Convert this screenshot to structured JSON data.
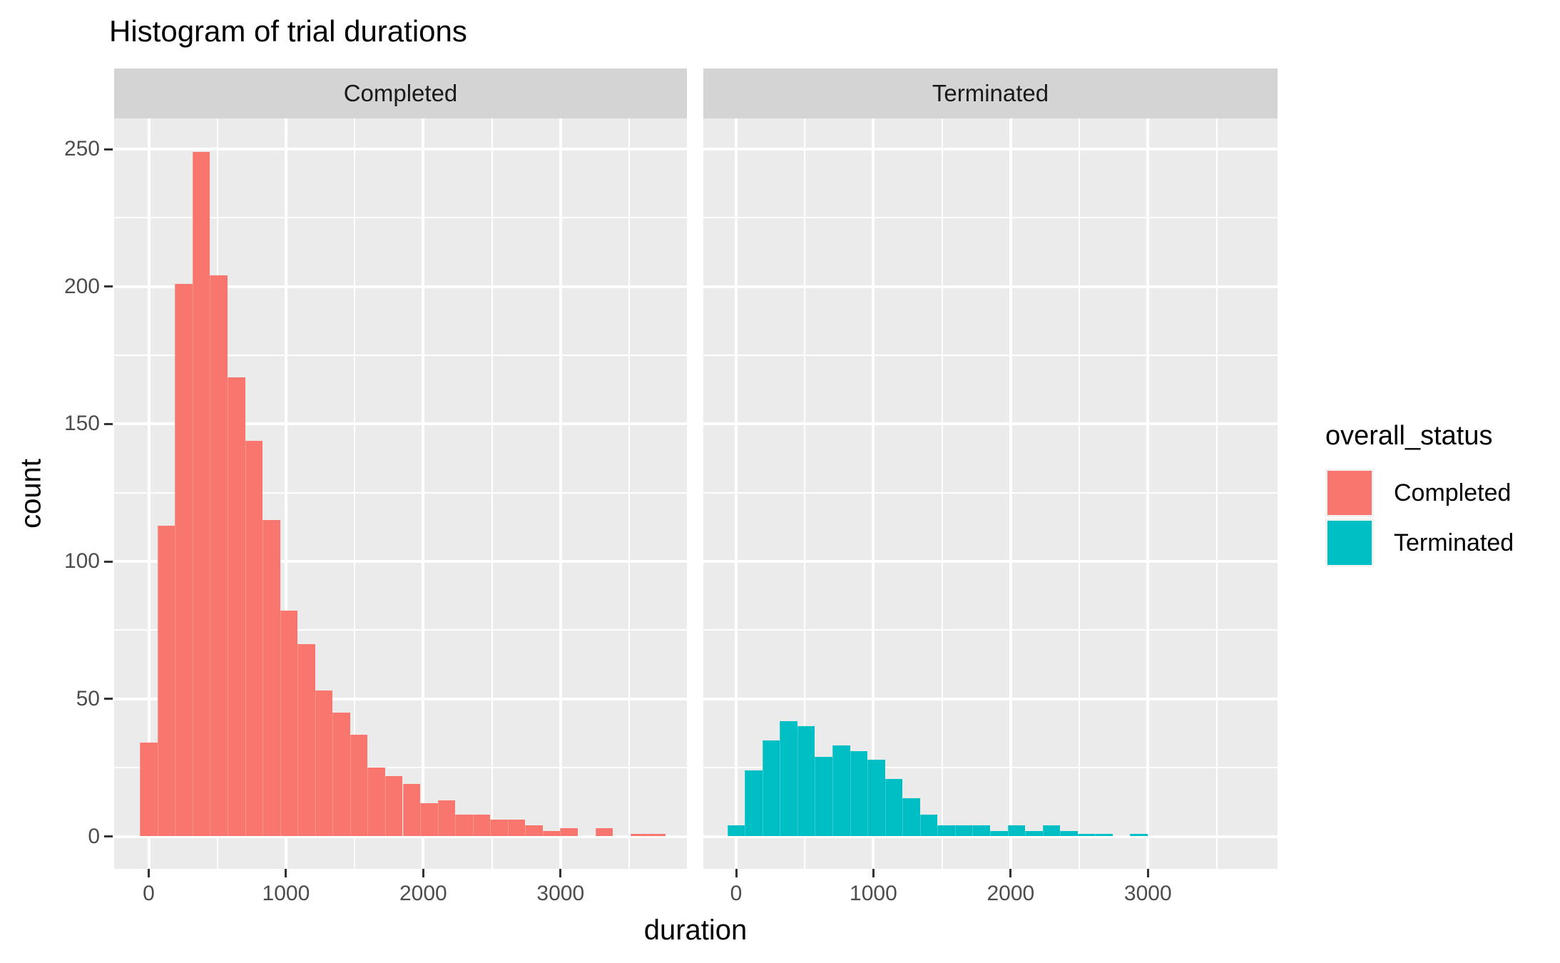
{
  "title": "Histogram of trial durations",
  "axes": {
    "x_label": "duration",
    "y_label": "count",
    "x_tick_labels": [
      "0",
      "1000",
      "2000",
      "3000"
    ],
    "y_tick_labels": [
      "0",
      "50",
      "100",
      "150",
      "200",
      "250"
    ]
  },
  "facets": [
    "Completed",
    "Terminated"
  ],
  "legend": {
    "title": "overall_status",
    "items": [
      {
        "label": "Completed",
        "color": "#F8766D"
      },
      {
        "label": "Terminated",
        "color": "#00BFC4"
      }
    ]
  },
  "colors": {
    "completed": "#F8766D",
    "terminated": "#00BFC4",
    "panel_bg": "#EBEBEB",
    "strip_bg": "#D4D4D4",
    "grid": "#FFFFFF",
    "tick_mark": "#333333",
    "tick_label": "#4D4D4D",
    "strip_text": "#1A1A1A"
  },
  "chart_data": {
    "type": "bar",
    "subtype": "faceted-histogram",
    "title": "Histogram of trial durations",
    "xlabel": "duration",
    "ylabel": "count",
    "facet_variable": "overall_status",
    "x_ticks": [
      0,
      1000,
      2000,
      3000
    ],
    "x_minor_ticks": [
      500,
      1500,
      2500,
      3500
    ],
    "y_ticks": [
      0,
      50,
      100,
      150,
      200,
      250
    ],
    "y_minor_ticks": [
      25,
      75,
      125,
      175,
      225
    ],
    "ylim": [
      0,
      260
    ],
    "grid": "on",
    "legend_position": "right",
    "bin_width": 127.6,
    "bin_centers": [
      0,
      128,
      255,
      383,
      510,
      638,
      766,
      893,
      1021,
      1148,
      1276,
      1403,
      1531,
      1659,
      1786,
      1914,
      2041,
      2169,
      2297,
      2424,
      2552,
      2679,
      2807,
      2934,
      3062,
      3190,
      3317,
      3445,
      3572,
      3700
    ],
    "series": [
      {
        "name": "Completed",
        "color": "#F8766D",
        "counts": [
          34,
          113,
          201,
          249,
          204,
          167,
          144,
          115,
          82,
          70,
          53,
          45,
          37,
          25,
          22,
          19,
          12,
          13,
          8,
          8,
          6,
          6,
          4,
          2,
          3,
          0,
          3,
          0,
          1,
          1
        ]
      },
      {
        "name": "Terminated",
        "color": "#00BFC4",
        "counts": [
          4,
          24,
          35,
          42,
          40,
          29,
          33,
          31,
          28,
          21,
          14,
          8,
          4,
          4,
          4,
          2,
          4,
          2,
          4,
          2,
          1,
          1,
          0,
          1,
          0,
          0,
          0,
          0,
          0,
          0
        ]
      }
    ]
  }
}
